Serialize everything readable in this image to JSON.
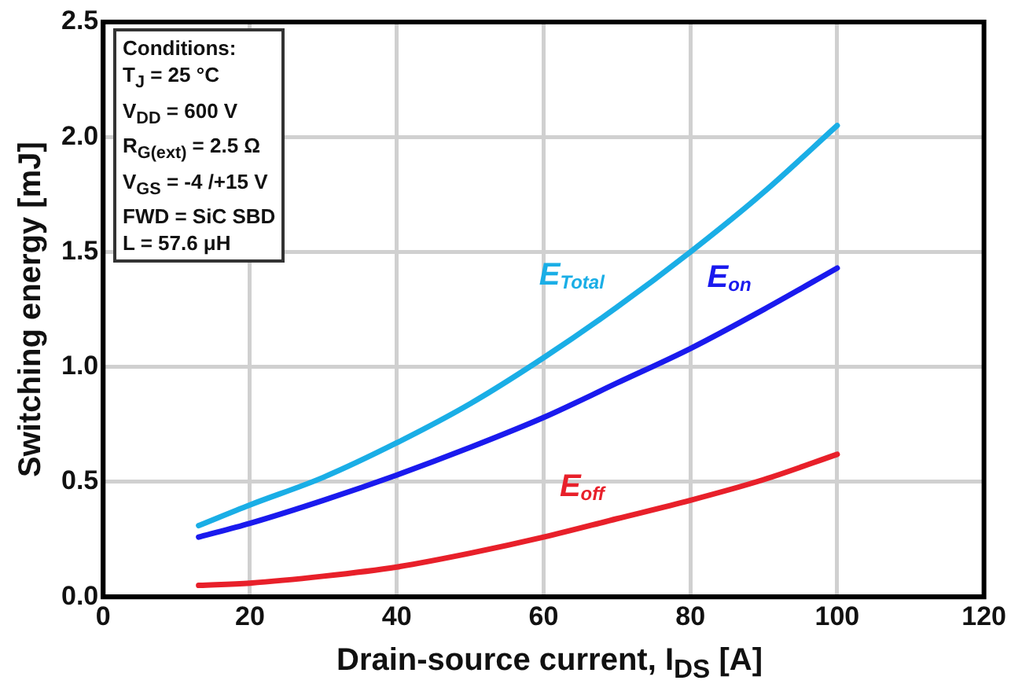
{
  "chart_data": {
    "type": "line",
    "xlabel": "Drain-source current, I$_{DS}$ [A]",
    "ylabel": "Switching energy [mJ]",
    "x": [
      13,
      20,
      30,
      40,
      50,
      60,
      70,
      80,
      90,
      100
    ],
    "series": [
      {
        "name": "E$_{Total}$",
        "color": "#1aaee6",
        "values": [
          0.31,
          0.4,
          0.52,
          0.67,
          0.84,
          1.04,
          1.26,
          1.5,
          1.76,
          2.05
        ]
      },
      {
        "name": "E$_{on}$",
        "color": "#1a1aee",
        "values": [
          0.26,
          0.32,
          0.42,
          0.53,
          0.65,
          0.78,
          0.93,
          1.08,
          1.25,
          1.43
        ]
      },
      {
        "name": "E$_{off}$",
        "color": "#e8202a",
        "values": [
          0.05,
          0.06,
          0.09,
          0.13,
          0.19,
          0.26,
          0.34,
          0.42,
          0.51,
          0.62
        ]
      }
    ],
    "xlim": [
      0,
      120
    ],
    "xticks": [
      0,
      20,
      40,
      60,
      80,
      100,
      120
    ],
    "ylim": [
      0,
      2.5
    ],
    "yticks": [
      {
        "value": 0,
        "label": "0.0"
      },
      {
        "value": 0.5,
        "label": "0.5"
      },
      {
        "value": 1,
        "label": "1.0"
      },
      {
        "value": 1.5,
        "label": "1.5"
      },
      {
        "value": 2,
        "label": "2.0"
      },
      {
        "value": 2.5,
        "label": "2.5"
      }
    ],
    "annotations": [
      "Conditions:",
      "T$_{J}$ = 25 °C",
      "V$_{DD}$ = 600 V",
      "R$_{G(ext)}$ = 2.5 Ω",
      "V$_{GS}$ = -4 /+15 V",
      "FWD = SiC SBD",
      "L = 57.6 μH"
    ],
    "grid": true,
    "legend": false,
    "marker": "none",
    "line_style": "solid"
  }
}
